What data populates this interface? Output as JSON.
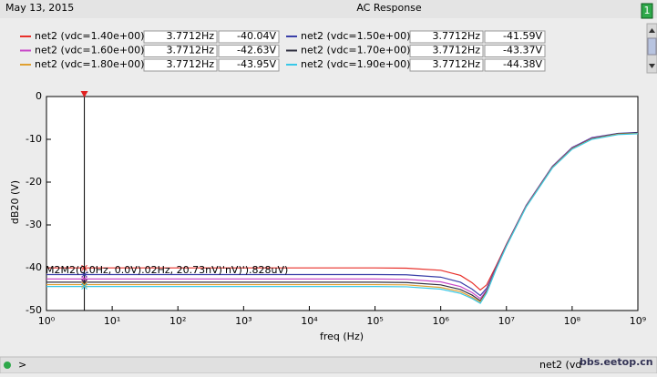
{
  "header": {
    "date": "May 13, 2015",
    "badge": "1"
  },
  "chart_data": {
    "type": "line",
    "title": "AC Response",
    "xlabel": "freq (Hz)",
    "ylabel": "dB20 (V)",
    "xscale": "log",
    "grid": false,
    "xlim": [
      1,
      1000000000
    ],
    "ylim": [
      -50,
      0
    ],
    "xticks": [
      {
        "value": 1,
        "label": "10⁰"
      },
      {
        "value": 10,
        "label": "10¹"
      },
      {
        "value": 100,
        "label": "10²"
      },
      {
        "value": 1000,
        "label": "10³"
      },
      {
        "value": 10000,
        "label": "10⁴"
      },
      {
        "value": 100000,
        "label": "10⁵"
      },
      {
        "value": 1000000,
        "label": "10⁶"
      },
      {
        "value": 10000000,
        "label": "10⁷"
      },
      {
        "value": 100000000,
        "label": "10⁸"
      },
      {
        "value": 1000000000,
        "label": "10⁹"
      }
    ],
    "yticks": [
      0,
      -10,
      -20,
      -30,
      -40,
      -50
    ],
    "cursor": {
      "value": 3.7712,
      "label": "3.7712Hz"
    },
    "annotation": "M2M2(0.0Hz, 0.0V).02Hz, 20.73nV)'nV)').828uV)",
    "x": [
      1,
      10,
      100,
      1000,
      10000,
      100000,
      300000,
      1000000,
      2000000,
      3000000,
      4000000,
      5000000,
      7000000,
      10000000,
      20000000,
      50000000,
      100000000,
      200000000,
      500000000,
      1000000000
    ],
    "series": [
      {
        "name": "net2 (vdc=1.40e+00)",
        "color": "#e8302a",
        "cursor_value": {
          "value": -40.04,
          "label": "-40.04V"
        },
        "values": [
          -40.04,
          -40.04,
          -40.04,
          -40.04,
          -40.04,
          -40.04,
          -40.1,
          -40.6,
          -41.8,
          -43.5,
          -45.2,
          -44,
          -39.5,
          -34.5,
          -25.5,
          -16.5,
          -12.2,
          -9.9,
          -8.8,
          -8.6
        ]
      },
      {
        "name": "net2 (vdc=1.50e+00)",
        "color": "#3a3fa8",
        "cursor_value": {
          "value": -41.59,
          "label": "-41.59V"
        },
        "values": [
          -41.59,
          -41.59,
          -41.59,
          -41.59,
          -41.59,
          -41.59,
          -41.65,
          -42.2,
          -43.4,
          -45.0,
          -46.5,
          -44.8,
          -39.8,
          -34.6,
          -25.4,
          -16.3,
          -11.9,
          -9.6,
          -8.6,
          -8.4
        ]
      },
      {
        "name": "net2 (vdc=1.60e+00)",
        "color": "#c848c8",
        "cursor_value": {
          "value": -42.63,
          "label": "-42.63V"
        },
        "values": [
          -42.63,
          -42.63,
          -42.63,
          -42.63,
          -42.63,
          -42.63,
          -42.7,
          -43.3,
          -44.4,
          -45.8,
          -47.2,
          -45.2,
          -40.0,
          -34.7,
          -25.5,
          -16.4,
          -12.0,
          -9.7,
          -8.7,
          -8.5
        ]
      },
      {
        "name": "net2 (vdc=1.70e+00)",
        "color": "#303040",
        "cursor_value": {
          "value": -43.37,
          "label": "-43.37V"
        },
        "values": [
          -43.37,
          -43.37,
          -43.37,
          -43.37,
          -43.37,
          -43.37,
          -43.45,
          -44.0,
          -45.1,
          -46.4,
          -47.7,
          -45.5,
          -40.1,
          -34.8,
          -25.6,
          -16.5,
          -12.1,
          -9.8,
          -8.7,
          -8.5
        ]
      },
      {
        "name": "net2 (vdc=1.80e+00)",
        "color": "#e0a030",
        "cursor_value": {
          "value": -43.95,
          "label": "-43.95V"
        },
        "values": [
          -43.95,
          -43.95,
          -43.95,
          -43.95,
          -43.95,
          -43.95,
          -44.0,
          -44.6,
          -45.6,
          -46.9,
          -48.0,
          -45.7,
          -40.2,
          -34.9,
          -25.7,
          -16.6,
          -12.2,
          -9.9,
          -8.8,
          -8.6
        ]
      },
      {
        "name": "net2 (vdc=1.90e+00)",
        "color": "#38c8e8",
        "cursor_value": {
          "value": -44.38,
          "label": "-44.38V"
        },
        "values": [
          -44.38,
          -44.38,
          -44.38,
          -44.38,
          -44.38,
          -44.38,
          -44.45,
          -45.0,
          -46.0,
          -47.2,
          -48.3,
          -45.9,
          -40.3,
          -35.0,
          -25.8,
          -16.7,
          -12.3,
          -10.0,
          -8.9,
          -8.7
        ]
      }
    ]
  },
  "status": {
    "prompt": ">",
    "text": "net2 (vd",
    "watermark": "bbs.eetop.cn"
  }
}
